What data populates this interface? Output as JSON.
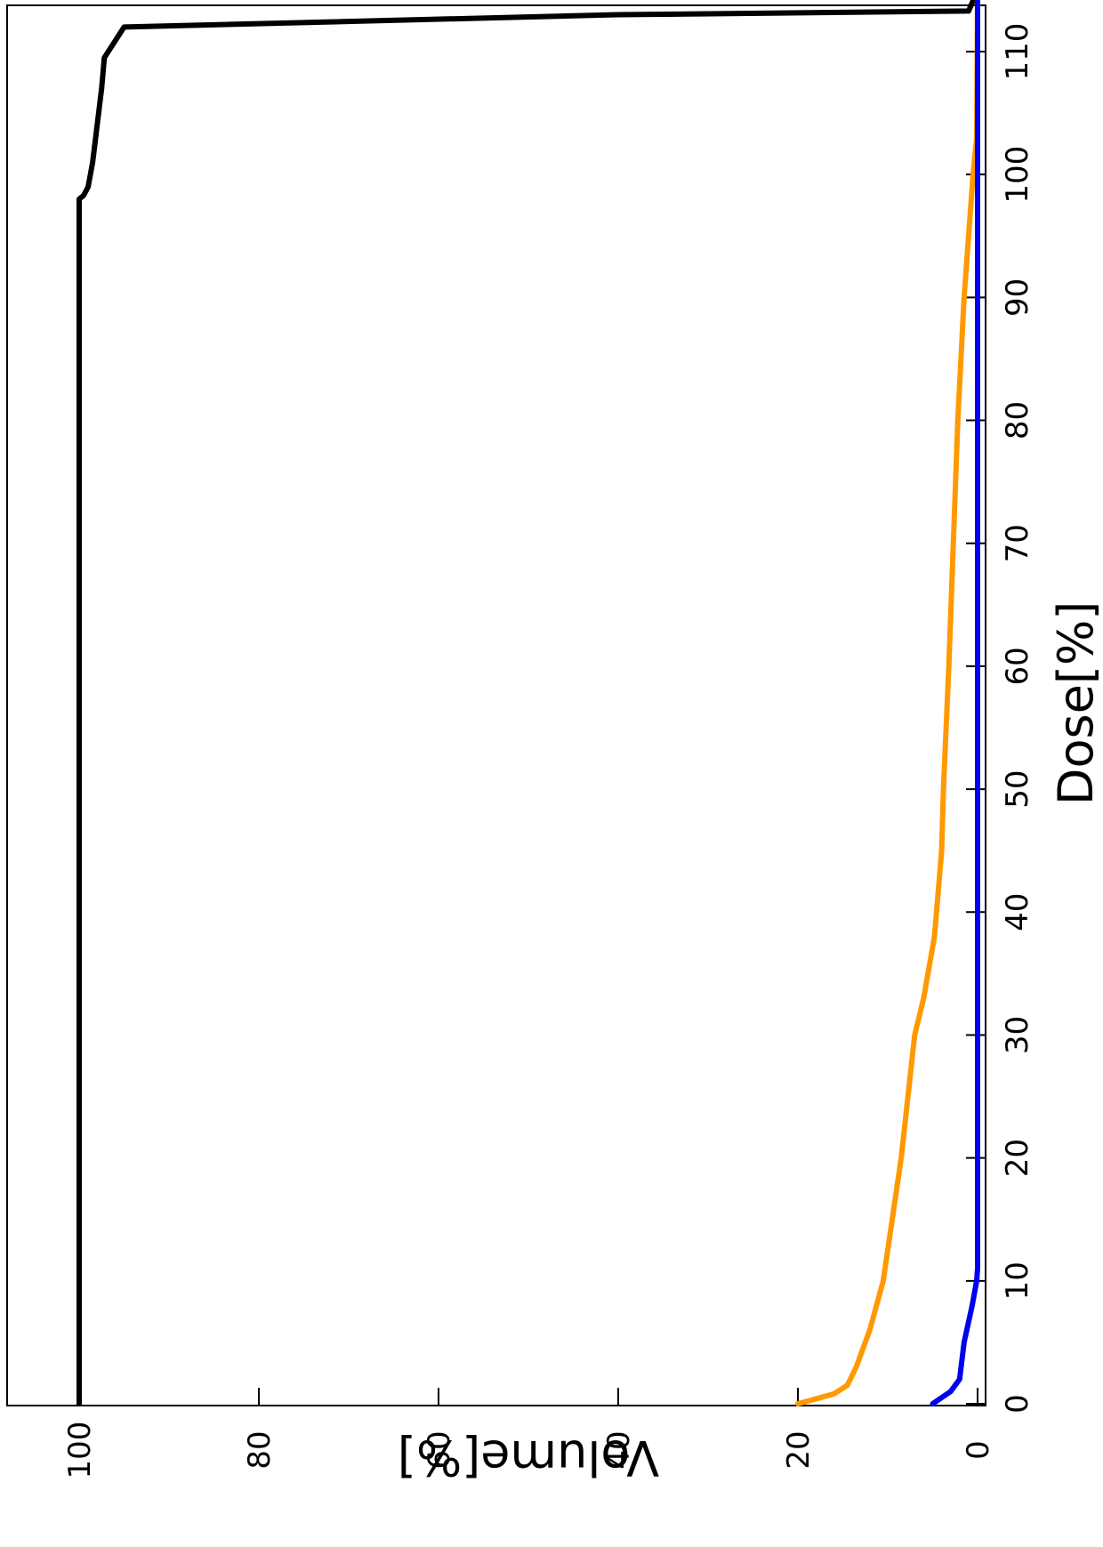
{
  "chart_data": {
    "type": "line",
    "title": "",
    "xlabel": "Dose[%]",
    "ylabel": "Volume[%]",
    "xlim": [
      0,
      115
    ],
    "ylim": [
      0,
      100
    ],
    "x_ticks": [
      0,
      10,
      20,
      30,
      40,
      50,
      60,
      70,
      80,
      90,
      100,
      110
    ],
    "y_ticks": [
      0,
      20,
      40,
      60,
      80,
      100
    ],
    "grid": false,
    "legend": "none",
    "orientation": "rotated 90° clockwise on page",
    "series": [
      {
        "color": "#000000",
        "x": [
          0,
          98,
          98.3,
          99.0,
          101.0,
          104.0,
          107.0,
          109.5,
          112.0,
          113.0,
          113.3,
          115
        ],
        "y": [
          100,
          100,
          99.5,
          99.0,
          98.5,
          98.0,
          97.5,
          97.2,
          95.0,
          40.0,
          1.0,
          0
        ]
      },
      {
        "color": "#ff9900",
        "x": [
          0,
          0.8,
          1.5,
          3,
          6,
          10,
          20,
          30,
          33,
          38,
          45,
          50,
          60,
          70,
          80,
          90,
          100,
          103,
          115
        ],
        "y": [
          20,
          16,
          14.5,
          13.5,
          12,
          10.5,
          8.5,
          7,
          6,
          4.8,
          4,
          3.8,
          3.2,
          2.7,
          2.2,
          1.5,
          0.5,
          0.1,
          0
        ]
      },
      {
        "color": "#0000ee",
        "x": [
          0,
          1,
          2,
          5,
          8,
          10,
          11,
          115
        ],
        "y": [
          5,
          3,
          2,
          1.5,
          0.6,
          0.1,
          0,
          0
        ]
      }
    ]
  }
}
